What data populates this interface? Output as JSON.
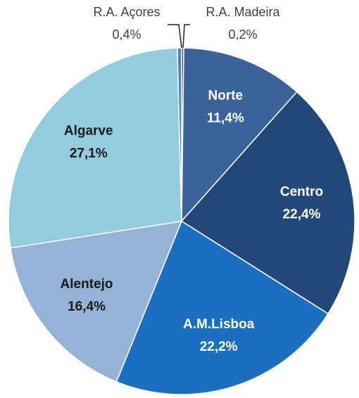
{
  "chart_data": {
    "type": "pie",
    "categories": [
      "R.A. Madeira",
      "Norte",
      "Centro",
      "A.M.Lisboa",
      "Alentejo",
      "Algarve",
      "R.A. Açores"
    ],
    "values": [
      0.2,
      11.4,
      22.4,
      22.2,
      16.4,
      27.1,
      0.4
    ],
    "value_labels": [
      "0,2%",
      "11,4%",
      "22,4%",
      "22,2%",
      "16,4%",
      "27,1%",
      "0,4%"
    ],
    "colors": [
      "#1f3f6a",
      "#3a6499",
      "#22487a",
      "#1b6fc0",
      "#95b3d7",
      "#93cddd",
      "#4f81bd"
    ]
  }
}
